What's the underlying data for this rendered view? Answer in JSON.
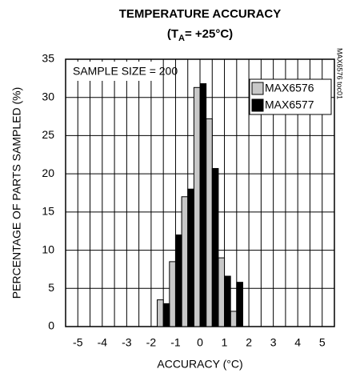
{
  "chart_data": {
    "type": "bar",
    "title": "TEMPERATURE ACCURACY",
    "subtitle": [
      "(T",
      "A",
      "= +25°C)"
    ],
    "annotation": "SAMPLE SIZE = 200",
    "side_label": "MAX6576 toc01",
    "x_label": "ACCURACY (°C)",
    "y_label": "PERCENTAGE OF PARTS SAMPLED (%)",
    "x": [
      -1.5,
      -1,
      -0.5,
      0,
      0.5,
      1,
      1.5
    ],
    "series": [
      {
        "name": "MAX6576",
        "color": "#c8c8c8",
        "values": [
          3.5,
          8.5,
          17,
          31.3,
          27.2,
          9,
          2
        ]
      },
      {
        "name": "MAX6577",
        "color": "#000000",
        "values": [
          3,
          12,
          18,
          31.8,
          20.7,
          6.6,
          5.8
        ]
      }
    ],
    "xlim": [
      -5.5,
      5.5
    ],
    "xticks": [
      -5,
      -4,
      -3,
      -2,
      -1,
      0,
      1,
      2,
      3,
      4,
      5
    ],
    "xminorticks": [
      -4.5,
      -3.5,
      -2.5,
      -1.5,
      -0.5,
      0.5,
      1.5,
      2.5,
      3.5,
      4.5
    ],
    "ylim": [
      0,
      35
    ],
    "yticks": [
      0,
      5,
      10,
      15,
      20,
      25,
      30,
      35
    ],
    "grid": true,
    "legend": "upper right"
  }
}
